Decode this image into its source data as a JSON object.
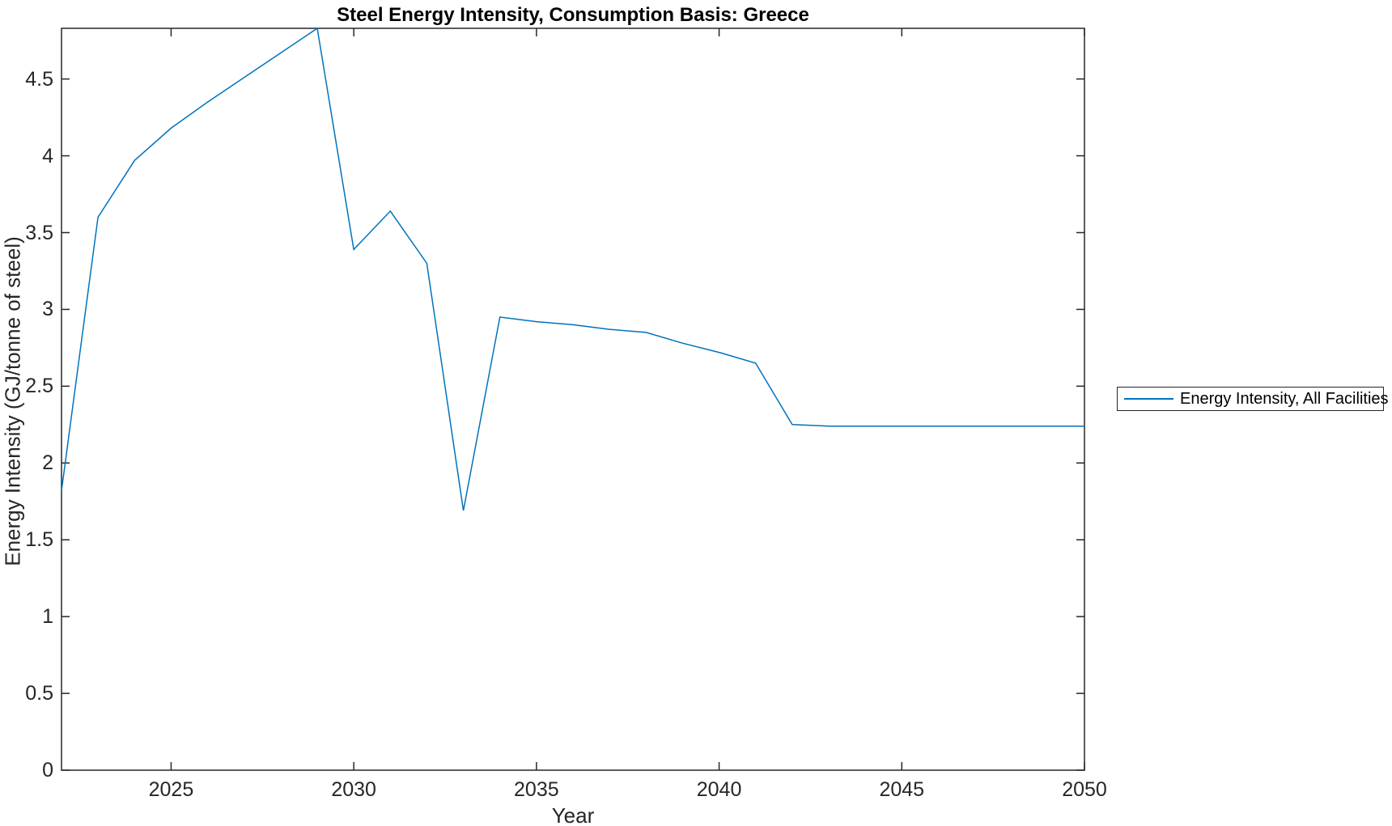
{
  "chart_data": {
    "type": "line",
    "title": "Steel Energy Intensity, Consumption Basis: Greece",
    "xlabel": "Year",
    "ylabel": "Energy Intensity (GJ/tonne of steel)",
    "legend": [
      "Energy Intensity, All Facilities"
    ],
    "legend_position": "right-outside",
    "grid": false,
    "xlim": [
      2022,
      2050
    ],
    "ylim": [
      0,
      4.83
    ],
    "xticks": [
      2025,
      2030,
      2035,
      2040,
      2045,
      2050
    ],
    "yticks": [
      0,
      0.5,
      1,
      1.5,
      2,
      2.5,
      3,
      3.5,
      4,
      4.5
    ],
    "colors": {
      "line": "#0072BD",
      "axis": "#262626",
      "background": "#ffffff"
    },
    "series": [
      {
        "name": "Energy Intensity, All Facilities",
        "x": [
          2022,
          2023,
          2024,
          2025,
          2026,
          2027,
          2028,
          2029,
          2030,
          2031,
          2032,
          2033,
          2034,
          2035,
          2036,
          2037,
          2038,
          2039,
          2040,
          2041,
          2042,
          2043,
          2044,
          2045,
          2046,
          2047,
          2048,
          2049,
          2050
        ],
        "y": [
          1.82,
          3.6,
          3.97,
          4.18,
          4.35,
          4.51,
          4.67,
          4.83,
          3.39,
          3.64,
          3.3,
          1.69,
          2.95,
          2.92,
          2.9,
          2.87,
          2.85,
          2.78,
          2.72,
          2.65,
          2.25,
          2.24,
          2.24,
          2.24,
          2.24,
          2.24,
          2.24,
          2.24,
          2.24
        ]
      }
    ]
  }
}
